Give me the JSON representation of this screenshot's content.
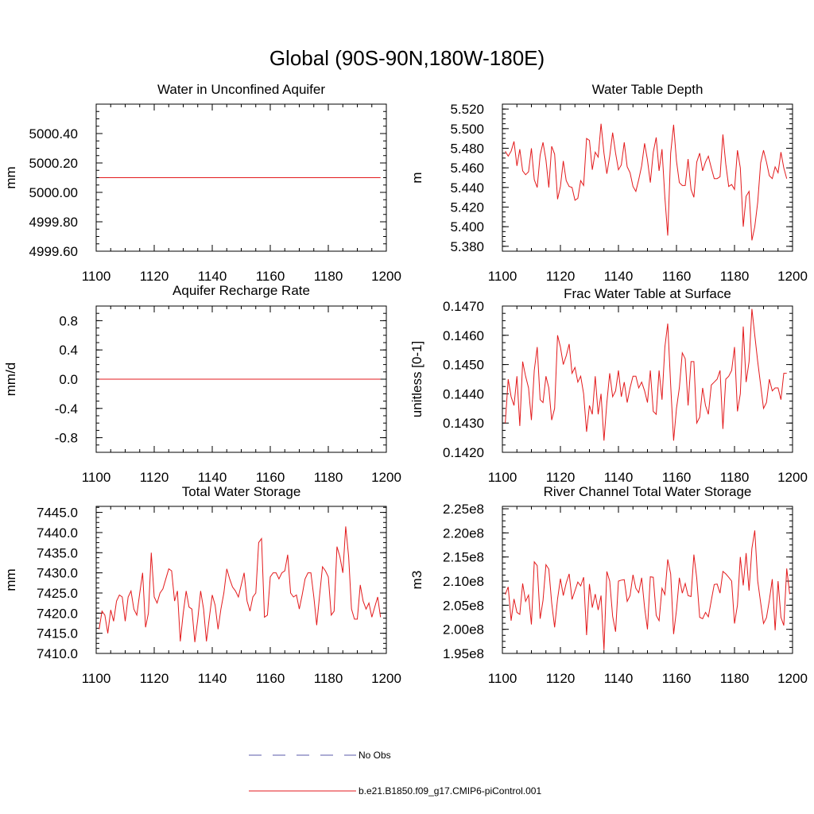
{
  "figure": {
    "title": "Global (90S-90N,180W-180E)",
    "line_color": "#e31a1c",
    "obs_color": "#5a5aa8"
  },
  "legend": [
    {
      "label": "No Obs",
      "style": "dashed",
      "color": "#5a5aa8"
    },
    {
      "label": "b.e21.B1850.f09_g17.CMIP6-piControl.001",
      "style": "solid",
      "color": "#e31a1c"
    }
  ],
  "chart_data": [
    {
      "type": "line",
      "title": "Water in Unconfined Aquifer",
      "ylabel": "mm",
      "xlim": [
        1100,
        1200
      ],
      "ylim": [
        4999.6,
        5000.6
      ],
      "xticks": [
        1100,
        1120,
        1140,
        1160,
        1180,
        1200
      ],
      "xtick_labels": [
        "1100",
        "1120",
        "1140",
        "1160",
        "1180",
        "1200"
      ],
      "yticks": [
        4999.6,
        4999.8,
        5000.0,
        5000.2,
        5000.4
      ],
      "ytick_labels": [
        "4999.60",
        "4999.80",
        "5000.00",
        "5000.20",
        "5000.40"
      ],
      "x_start": 1101,
      "series": [
        {
          "name": "b.e21.B1850.f09_g17.CMIP6-piControl.001",
          "constant": 5000.1,
          "n": 98
        }
      ]
    },
    {
      "type": "line",
      "title": "Water Table Depth",
      "ylabel": "m",
      "xlim": [
        1100,
        1200
      ],
      "ylim": [
        5.375,
        5.525
      ],
      "xticks": [
        1100,
        1120,
        1140,
        1160,
        1180,
        1200
      ],
      "xtick_labels": [
        "1100",
        "1120",
        "1140",
        "1160",
        "1180",
        "1200"
      ],
      "yticks": [
        5.38,
        5.4,
        5.42,
        5.44,
        5.46,
        5.48,
        5.5,
        5.52
      ],
      "ytick_labels": [
        "5.380",
        "5.400",
        "5.420",
        "5.440",
        "5.460",
        "5.480",
        "5.500",
        "5.520"
      ],
      "x_start": 1101,
      "series": [
        {
          "name": "b.e21.B1850.f09_g17.CMIP6-piControl.001",
          "values": [
            5.477,
            5.472,
            5.477,
            5.487,
            5.462,
            5.479,
            5.457,
            5.453,
            5.456,
            5.48,
            5.448,
            5.44,
            5.473,
            5.486,
            5.468,
            5.44,
            5.482,
            5.474,
            5.428,
            5.441,
            5.467,
            5.447,
            5.441,
            5.44,
            5.427,
            5.429,
            5.447,
            5.442,
            5.49,
            5.488,
            5.458,
            5.476,
            5.471,
            5.505,
            5.475,
            5.454,
            5.472,
            5.496,
            5.475,
            5.458,
            5.463,
            5.486,
            5.461,
            5.455,
            5.441,
            5.436,
            5.448,
            5.462,
            5.485,
            5.468,
            5.445,
            5.476,
            5.491,
            5.457,
            5.479,
            5.43,
            5.391,
            5.475,
            5.504,
            5.467,
            5.445,
            5.442,
            5.442,
            5.469,
            5.438,
            5.43,
            5.466,
            5.475,
            5.457,
            5.466,
            5.472,
            5.46,
            5.449,
            5.449,
            5.451,
            5.494,
            5.464,
            5.441,
            5.443,
            5.438,
            5.478,
            5.46,
            5.4,
            5.431,
            5.436,
            5.386,
            5.4,
            5.425,
            5.465,
            5.478,
            5.466,
            5.452,
            5.449,
            5.461,
            5.455,
            5.476,
            5.46,
            5.449
          ]
        }
      ]
    },
    {
      "type": "line",
      "title": "Aquifer Recharge Rate",
      "ylabel": "mm/d",
      "xlim": [
        1100,
        1200
      ],
      "ylim": [
        -1.0,
        1.0
      ],
      "xticks": [
        1100,
        1120,
        1140,
        1160,
        1180,
        1200
      ],
      "xtick_labels": [
        "1100",
        "1120",
        "1140",
        "1160",
        "1180",
        "1200"
      ],
      "yticks": [
        -0.8,
        -0.4,
        0.0,
        0.4,
        0.8
      ],
      "ytick_labels": [
        "-0.8",
        "-0.4",
        "0.0",
        "0.4",
        "0.8"
      ],
      "x_start": 1101,
      "series": [
        {
          "name": "b.e21.B1850.f09_g17.CMIP6-piControl.001",
          "constant": 0.0,
          "n": 98
        }
      ]
    },
    {
      "type": "line",
      "title": "Frac Water Table at Surface",
      "ylabel": "unitless [0-1]",
      "xlim": [
        1100,
        1200
      ],
      "ylim": [
        0.142,
        0.147
      ],
      "xticks": [
        1100,
        1120,
        1140,
        1160,
        1180,
        1200
      ],
      "xtick_labels": [
        "1100",
        "1120",
        "1140",
        "1160",
        "1180",
        "1200"
      ],
      "yticks": [
        0.142,
        0.143,
        0.144,
        0.145,
        0.146,
        0.147
      ],
      "ytick_labels": [
        "0.1420",
        "0.1430",
        "0.1440",
        "0.1450",
        "0.1460",
        "0.1470"
      ],
      "x_start": 1101,
      "series": [
        {
          "name": "b.e21.B1850.f09_g17.CMIP6-piControl.001",
          "values": [
            0.143,
            0.1445,
            0.1439,
            0.1436,
            0.1446,
            0.1429,
            0.1451,
            0.1446,
            0.1442,
            0.1431,
            0.1448,
            0.1456,
            0.1438,
            0.1437,
            0.1446,
            0.1442,
            0.1431,
            0.1435,
            0.146,
            0.1456,
            0.145,
            0.1453,
            0.1457,
            0.1447,
            0.1449,
            0.1444,
            0.1446,
            0.144,
            0.1427,
            0.1436,
            0.1433,
            0.1446,
            0.1433,
            0.144,
            0.1424,
            0.1437,
            0.1447,
            0.1439,
            0.1441,
            0.1448,
            0.1439,
            0.1444,
            0.1437,
            0.1442,
            0.1446,
            0.1446,
            0.1442,
            0.1444,
            0.1441,
            0.1437,
            0.1448,
            0.1434,
            0.1433,
            0.1448,
            0.1438,
            0.1456,
            0.1464,
            0.1443,
            0.1424,
            0.1435,
            0.1442,
            0.1454,
            0.1452,
            0.1436,
            0.1451,
            0.1451,
            0.143,
            0.1432,
            0.1442,
            0.1436,
            0.1433,
            0.1443,
            0.1444,
            0.1445,
            0.1448,
            0.1428,
            0.1445,
            0.1446,
            0.1448,
            0.1456,
            0.1434,
            0.144,
            0.1463,
            0.1444,
            0.1451,
            0.1469,
            0.146,
            0.1451,
            0.1443,
            0.1435,
            0.1437,
            0.1445,
            0.1441,
            0.1442,
            0.1442,
            0.1438,
            0.1447,
            0.1447
          ]
        }
      ]
    },
    {
      "type": "line",
      "title": "Total Water Storage",
      "ylabel": "mm",
      "xlim": [
        1100,
        1200
      ],
      "ylim": [
        7410.0,
        7446.5
      ],
      "xticks": [
        1100,
        1120,
        1140,
        1160,
        1180,
        1200
      ],
      "xtick_labels": [
        "1100",
        "1120",
        "1140",
        "1160",
        "1180",
        "1200"
      ],
      "yticks": [
        7410.0,
        7415.0,
        7420.0,
        7425.0,
        7430.0,
        7435.0,
        7440.0,
        7445.0
      ],
      "ytick_labels": [
        "7410.0",
        "7415.0",
        "7420.0",
        "7425.0",
        "7430.0",
        "7435.0",
        "7440.0",
        "7445.0"
      ],
      "x_start": 1101,
      "series": [
        {
          "name": "b.e21.B1850.f09_g17.CMIP6-piControl.001",
          "values": [
            7416.0,
            7420.5,
            7419.5,
            7415.0,
            7420.8,
            7418.0,
            7423.0,
            7424.5,
            7424.0,
            7418.0,
            7424.0,
            7425.5,
            7421.0,
            7419.5,
            7425.0,
            7430.0,
            7416.5,
            7420.0,
            7435.0,
            7424.0,
            7422.5,
            7425.0,
            7426.0,
            7428.5,
            7431.0,
            7430.5,
            7423.0,
            7425.5,
            7413.0,
            7420.0,
            7425.5,
            7421.5,
            7421.0,
            7412.8,
            7418.5,
            7425.5,
            7421.0,
            7413.0,
            7419.0,
            7424.5,
            7422.0,
            7416.0,
            7421.0,
            7425.0,
            7431.0,
            7428.5,
            7426.5,
            7425.5,
            7424.0,
            7427.0,
            7430.0,
            7423.0,
            7420.5,
            7424.0,
            7425.0,
            7437.5,
            7438.5,
            7419.0,
            7419.5,
            7429.0,
            7430.0,
            7430.0,
            7428.5,
            7430.0,
            7430.5,
            7434.5,
            7425.0,
            7424.0,
            7424.5,
            7421.0,
            7424.5,
            7428.5,
            7430.0,
            7430.0,
            7424.0,
            7417.0,
            7424.5,
            7431.5,
            7430.5,
            7429.0,
            7419.5,
            7420.5,
            7436.5,
            7434.0,
            7430.0,
            7441.5,
            7434.0,
            7421.0,
            7418.5,
            7418.5,
            7427.0,
            7423.0,
            7421.0,
            7422.5,
            7419.0,
            7421.5,
            7424.0,
            7419.0
          ]
        }
      ]
    },
    {
      "type": "line",
      "title": "River Channel Total Water Storage",
      "ylabel": "m3",
      "xlim": [
        1100,
        1200
      ],
      "ylim": [
        195000000.0,
        225500000.0
      ],
      "xticks": [
        1100,
        1120,
        1140,
        1160,
        1180,
        1200
      ],
      "xtick_labels": [
        "1100",
        "1120",
        "1140",
        "1160",
        "1180",
        "1200"
      ],
      "yticks": [
        195000000.0,
        200000000.0,
        205000000.0,
        210000000.0,
        215000000.0,
        220000000.0,
        225000000.0
      ],
      "ytick_labels": [
        "1.95e8",
        "2.00e8",
        "2.05e8",
        "2.10e8",
        "2.15e8",
        "2.20e8",
        "2.25e8"
      ],
      "x_start": 1101,
      "series": [
        {
          "name": "b.e21.B1850.f09_g17.CMIP6-piControl.001",
          "values": [
            207200000.0,
            208800000.0,
            201800000.0,
            206300000.0,
            203500000.0,
            203100000.0,
            209500000.0,
            205800000.0,
            207100000.0,
            201000000.0,
            214000000.0,
            213200000.0,
            202200000.0,
            206000000.0,
            213400000.0,
            212500000.0,
            205500000.0,
            200400000.0,
            206300000.0,
            210500000.0,
            207000000.0,
            209600000.0,
            211500000.0,
            206200000.0,
            208000000.0,
            209800000.0,
            209000000.0,
            210800000.0,
            198800000.0,
            209400000.0,
            204500000.0,
            207300000.0,
            204000000.0,
            207000000.0,
            195700000.0,
            212000000.0,
            210000000.0,
            202700000.0,
            199500000.0,
            210000000.0,
            210200000.0,
            210300000.0,
            205800000.0,
            207000000.0,
            211300000.0,
            208500000.0,
            207600000.0,
            210700000.0,
            204500000.0,
            200000000.0,
            210900000.0,
            210800000.0,
            202900000.0,
            201800000.0,
            208500000.0,
            207200000.0,
            214500000.0,
            211500000.0,
            199000000.0,
            204000000.0,
            210700000.0,
            207500000.0,
            209500000.0,
            207000000.0,
            206800000.0,
            215500000.0,
            210600000.0,
            202500000.0,
            202200000.0,
            203500000.0,
            202600000.0,
            206000000.0,
            209300000.0,
            209400000.0,
            207500000.0,
            212000000.0,
            211500000.0,
            210800000.0,
            210000000.0,
            201200000.0,
            205000000.0,
            215000000.0,
            209100000.0,
            215800000.0,
            208000000.0,
            216800000.0,
            220500000.0,
            210000000.0,
            205500000.0,
            201200000.0,
            202400000.0,
            206000000.0,
            210400000.0,
            199800000.0,
            210000000.0,
            202500000.0,
            200800000.0,
            212600000.0,
            207300000.0
          ]
        }
      ]
    }
  ]
}
